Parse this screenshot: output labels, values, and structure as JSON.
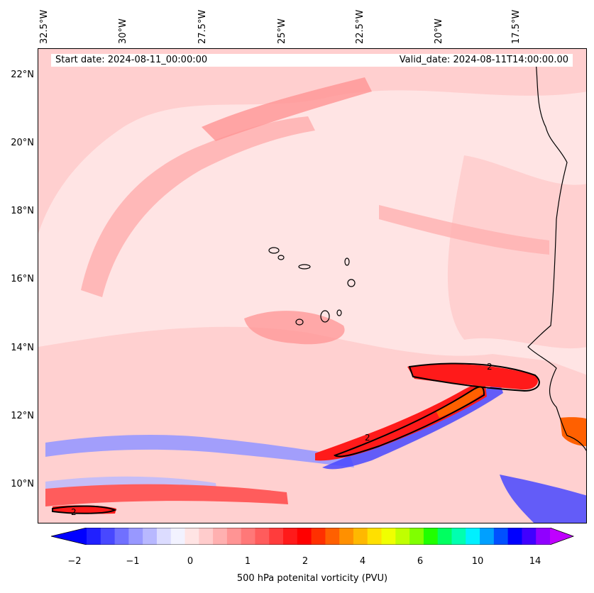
{
  "header": {
    "start_date": "Start date: 2024-08-11_00:00:00",
    "valid_date": "Valid_date: 2024-08-11T14:00:00.00"
  },
  "axes": {
    "lon_ticks": [
      "32.5°W",
      "30°W",
      "27.5°W",
      "25°W",
      "22.5°W",
      "20°W",
      "17.5°W"
    ],
    "lat_ticks": [
      "22°N",
      "20°N",
      "18°N",
      "16°N",
      "14°N",
      "12°N",
      "10°N"
    ]
  },
  "colorbar": {
    "label": "500 hPa potenital vorticity (PVU)",
    "tick_labels": [
      "−2",
      "−1",
      "0",
      "1",
      "2",
      "4",
      "6",
      "10",
      "14"
    ],
    "colors": [
      "#0000ff",
      "#2020ff",
      "#4848ff",
      "#7070ff",
      "#9898ff",
      "#b8b8ff",
      "#dcdcff",
      "#f2f2ff",
      "#ffe4e4",
      "#ffcccc",
      "#ffb0b0",
      "#ff9494",
      "#ff7878",
      "#ff5c5c",
      "#ff3c3c",
      "#ff1a1a",
      "#ff0000",
      "#ff3000",
      "#ff6000",
      "#ff9000",
      "#ffb800",
      "#ffe000",
      "#f0ff00",
      "#c0ff00",
      "#80ff00",
      "#20ff00",
      "#00ff60",
      "#00ffb0",
      "#00f0ff",
      "#00a0ff",
      "#0050ff",
      "#0000ff",
      "#4000ff",
      "#9000ff",
      "#c000ff"
    ]
  },
  "map": {
    "contour_labels": [
      "2",
      "2",
      "2"
    ],
    "colors": {
      "background": "#ffe4e4",
      "light_pink": "#ffcccc",
      "pink": "#ffb0b0",
      "salmon": "#ff9494",
      "red": "#ff1a1a",
      "deep_red": "#ff0000",
      "orange": "#ff6000",
      "blue": "#4848ff",
      "light_blue": "#b8b8ff",
      "pale_blue": "#dcdcff"
    }
  }
}
